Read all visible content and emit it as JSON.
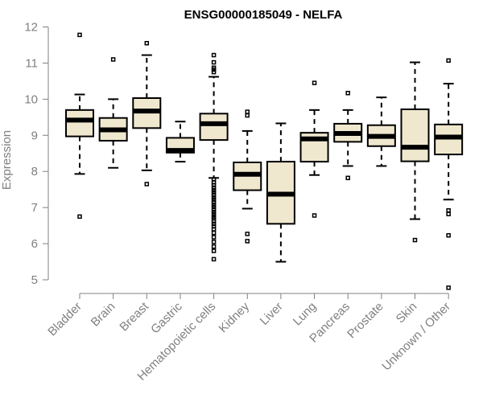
{
  "chart_data": {
    "type": "boxplot",
    "title": "ENSG00000185049 - NELFA",
    "xlabel": "",
    "ylabel": "Expression",
    "ylim": [
      5,
      12
    ],
    "yticks": [
      5,
      6,
      7,
      8,
      9,
      10,
      11,
      12
    ],
    "colors": {
      "box_fill": "#efe8cf",
      "stroke": "#000000",
      "axis": "#808080"
    },
    "categories": [
      "Bladder",
      "Brain",
      "Breast",
      "Gastric",
      "Hematopoietic cells",
      "Kidney",
      "Liver",
      "Lung",
      "Pancreas",
      "Prostate",
      "Skin",
      "Unknown / Other"
    ],
    "boxes": [
      {
        "name": "Bladder",
        "whisker_low": 7.93,
        "q1": 8.97,
        "median": 9.42,
        "q3": 9.7,
        "whisker_high": 10.13,
        "outliers": [
          11.78,
          6.75
        ]
      },
      {
        "name": "Brain",
        "whisker_low": 8.1,
        "q1": 8.85,
        "median": 9.15,
        "q3": 9.48,
        "whisker_high": 10.0,
        "outliers": [
          11.1
        ]
      },
      {
        "name": "Breast",
        "whisker_low": 8.03,
        "q1": 9.2,
        "median": 9.67,
        "q3": 10.03,
        "whisker_high": 11.22,
        "outliers": [
          11.55,
          7.65
        ]
      },
      {
        "name": "Gastric",
        "whisker_low": 8.27,
        "q1": 8.52,
        "median": 8.58,
        "q3": 8.93,
        "whisker_high": 9.38,
        "outliers": []
      },
      {
        "name": "Hematopoietic cells",
        "whisker_low": 7.82,
        "q1": 8.87,
        "median": 9.32,
        "q3": 9.6,
        "whisker_high": 10.62,
        "outliers": [
          11.22,
          11.02,
          10.87,
          10.82,
          10.75,
          7.78,
          7.7,
          7.62,
          7.55,
          7.48,
          7.42,
          7.35,
          7.28,
          7.22,
          7.15,
          7.08,
          7.02,
          6.95,
          6.88,
          6.82,
          6.75,
          6.7,
          6.62,
          6.55,
          6.48,
          6.4,
          6.3,
          6.18,
          6.05,
          5.92,
          5.8,
          5.57
        ]
      },
      {
        "name": "Kidney",
        "whisker_low": 6.97,
        "q1": 7.48,
        "median": 7.92,
        "q3": 8.25,
        "whisker_high": 9.12,
        "outliers": [
          9.65,
          9.55,
          6.27,
          6.07
        ]
      },
      {
        "name": "Liver",
        "whisker_low": 5.5,
        "q1": 6.55,
        "median": 7.37,
        "q3": 8.27,
        "whisker_high": 9.33,
        "outliers": []
      },
      {
        "name": "Lung",
        "whisker_low": 7.9,
        "q1": 8.27,
        "median": 8.9,
        "q3": 9.07,
        "whisker_high": 9.7,
        "outliers": [
          10.45,
          6.78
        ]
      },
      {
        "name": "Pancreas",
        "whisker_low": 8.15,
        "q1": 8.82,
        "median": 9.05,
        "q3": 9.32,
        "whisker_high": 9.7,
        "outliers": [
          10.17,
          7.82
        ]
      },
      {
        "name": "Prostate",
        "whisker_low": 8.15,
        "q1": 8.7,
        "median": 8.97,
        "q3": 9.28,
        "whisker_high": 10.05,
        "outliers": []
      },
      {
        "name": "Skin",
        "whisker_low": 6.68,
        "q1": 8.28,
        "median": 8.67,
        "q3": 9.72,
        "whisker_high": 11.02,
        "outliers": [
          6.1
        ]
      },
      {
        "name": "Unknown / Other",
        "whisker_low": 7.22,
        "q1": 8.47,
        "median": 8.95,
        "q3": 9.3,
        "whisker_high": 10.43,
        "outliers": [
          11.07,
          6.92,
          6.82,
          6.23,
          4.78
        ]
      }
    ]
  }
}
